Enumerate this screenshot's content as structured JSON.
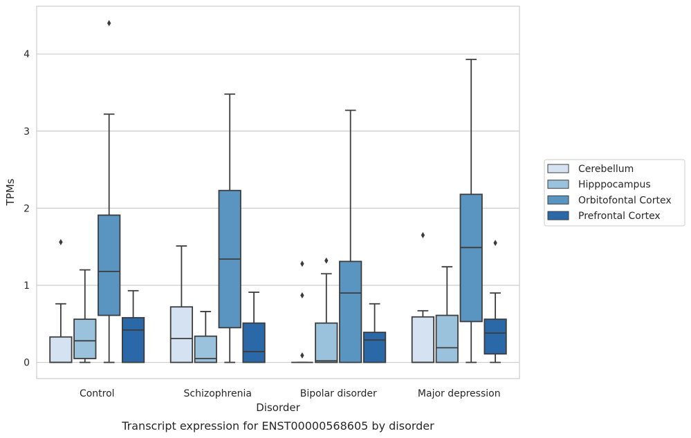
{
  "chart_data": {
    "type": "box",
    "title": "",
    "caption": "Transcript expression for ENST00000568605 by disorder",
    "xlabel": "Disorder",
    "ylabel": "TPMs",
    "ylim": [
      -0.21,
      4.62
    ],
    "yticks": [
      0,
      1,
      2,
      3,
      4
    ],
    "grid": "horizontal",
    "legend_position": "right",
    "categories": [
      "Control",
      "Schizophrenia",
      "Bipolar disorder",
      "Major depression"
    ],
    "series": [
      {
        "name": "Cerebellum",
        "color": "#d4e2f1",
        "boxes": [
          {
            "whislo": 0,
            "q1": 0,
            "med": 0,
            "q3": 0.33,
            "whishi": 0.76,
            "fliers": [
              1.56
            ]
          },
          {
            "whislo": 0,
            "q1": 0,
            "med": 0.31,
            "q3": 0.72,
            "whishi": 1.51,
            "fliers": []
          },
          {
            "whislo": 0,
            "q1": 0,
            "med": 0,
            "q3": 0,
            "whishi": 0,
            "fliers": [
              0.09,
              0.87,
              1.28
            ]
          },
          {
            "whislo": 0,
            "q1": 0,
            "med": 0,
            "q3": 0.59,
            "whishi": 0.67,
            "fliers": [
              1.65
            ]
          }
        ]
      },
      {
        "name": "Hipppocampus",
        "color": "#9bc2dd",
        "boxes": [
          {
            "whislo": 0,
            "q1": 0.05,
            "med": 0.28,
            "q3": 0.56,
            "whishi": 1.2,
            "fliers": []
          },
          {
            "whislo": 0,
            "q1": 0,
            "med": 0.05,
            "q3": 0.34,
            "whishi": 0.66,
            "fliers": []
          },
          {
            "whislo": 0,
            "q1": 0,
            "med": 0.02,
            "q3": 0.51,
            "whishi": 1.15,
            "fliers": [
              1.32
            ]
          },
          {
            "whislo": 0,
            "q1": 0,
            "med": 0.19,
            "q3": 0.61,
            "whishi": 1.24,
            "fliers": []
          }
        ]
      },
      {
        "name": "Orbitofontal Cortex",
        "color": "#5a95c1",
        "boxes": [
          {
            "whislo": 0,
            "q1": 0.61,
            "med": 1.18,
            "q3": 1.91,
            "whishi": 3.22,
            "fliers": [
              4.4
            ]
          },
          {
            "whislo": 0,
            "q1": 0.45,
            "med": 1.34,
            "q3": 2.23,
            "whishi": 3.48,
            "fliers": []
          },
          {
            "whislo": 0,
            "q1": 0,
            "med": 0.9,
            "q3": 1.31,
            "whishi": 3.27,
            "fliers": []
          },
          {
            "whislo": 0,
            "q1": 0.53,
            "med": 1.49,
            "q3": 2.18,
            "whishi": 3.93,
            "fliers": []
          }
        ]
      },
      {
        "name": "Prefrontal Cortex",
        "color": "#2b68a7",
        "boxes": [
          {
            "whislo": 0,
            "q1": 0,
            "med": 0.42,
            "q3": 0.58,
            "whishi": 0.93,
            "fliers": []
          },
          {
            "whislo": 0,
            "q1": 0,
            "med": 0.14,
            "q3": 0.51,
            "whishi": 0.91,
            "fliers": []
          },
          {
            "whislo": 0,
            "q1": 0,
            "med": 0.29,
            "q3": 0.39,
            "whishi": 0.76,
            "fliers": []
          },
          {
            "whislo": 0,
            "q1": 0.11,
            "med": 0.38,
            "q3": 0.56,
            "whishi": 0.9,
            "fliers": [
              1.55
            ]
          }
        ]
      }
    ]
  }
}
